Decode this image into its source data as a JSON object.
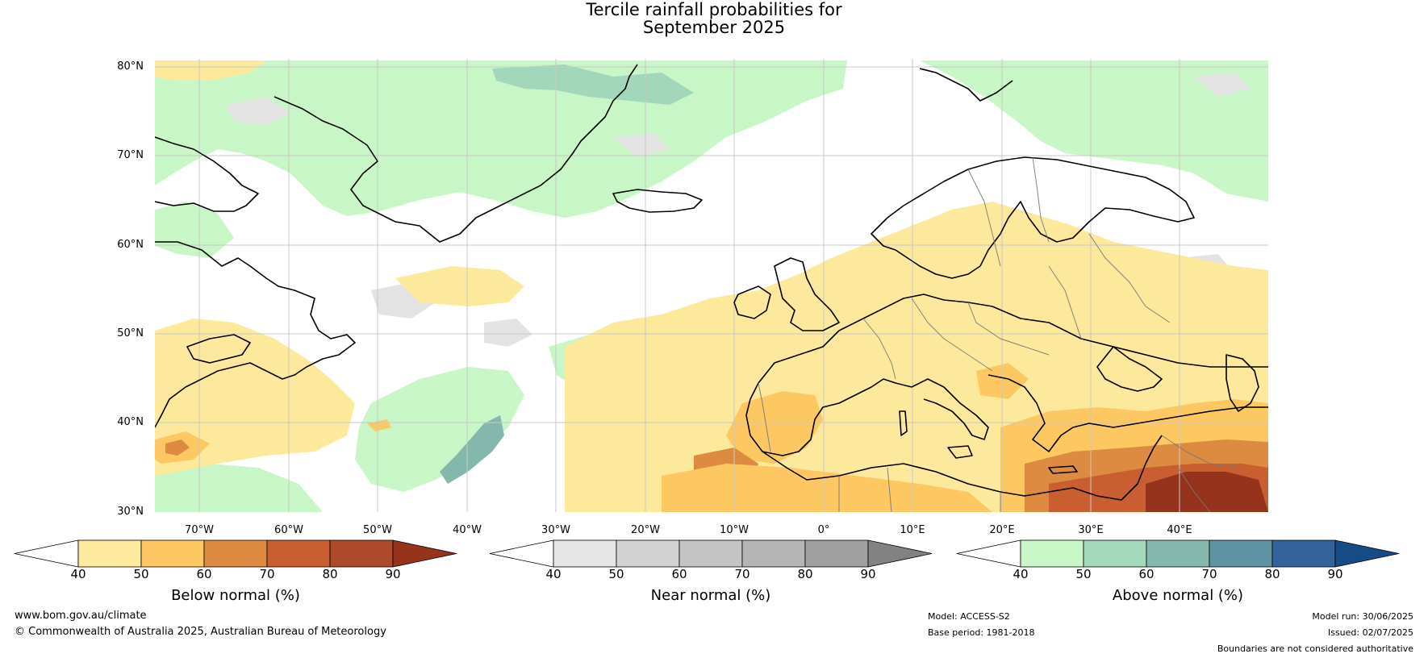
{
  "title": {
    "line1": "Tercile rainfall probabilities for",
    "line2": "September 2025"
  },
  "map": {
    "lat_labels": [
      "80°N",
      "70°N",
      "60°N",
      "50°N",
      "40°N",
      "30°N"
    ],
    "lon_labels": [
      "70°W",
      "60°W",
      "50°W",
      "40°W",
      "30°W",
      "20°W",
      "10°W",
      "0°",
      "10°E",
      "20°E",
      "30°E",
      "40°E"
    ],
    "lat_range": [
      30,
      81
    ],
    "lon_range": [
      -75,
      50
    ],
    "colors": {
      "land_border": "#000000",
      "country_border": "#777777",
      "grid": "#c8c8c8",
      "below_light": "#fde99b",
      "above_light": "#c9f6c6",
      "near_light": "#e3e3e3"
    }
  },
  "colorbars": [
    {
      "title": "Below normal (%)",
      "ticks": [
        "40",
        "50",
        "60",
        "70",
        "80",
        "90"
      ],
      "colors": [
        "#ffffff",
        "#feea9c",
        "#fdc862",
        "#dc8b40",
        "#c95f30",
        "#ad4a2c",
        "#96331d"
      ]
    },
    {
      "title": "Near normal (%)",
      "ticks": [
        "40",
        "50",
        "60",
        "70",
        "80",
        "90"
      ],
      "colors": [
        "#ffffff",
        "#e6e6e6",
        "#d3d3d3",
        "#c4c4c4",
        "#b5b5b5",
        "#a0a0a0",
        "#828282"
      ]
    },
    {
      "title": "Above normal (%)",
      "ticks": [
        "40",
        "50",
        "60",
        "70",
        "80",
        "90"
      ],
      "colors": [
        "#ffffff",
        "#c9f7c8",
        "#a4d9bb",
        "#84b8ad",
        "#5e93a3",
        "#33639a",
        "#164b85"
      ]
    }
  ],
  "footer": {
    "website": "www.bom.gov.au/climate",
    "copyright": "© Commonwealth of Australia 2025, Australian Bureau of Meteorology",
    "model": "Model: ACCESS-S2",
    "base_period": "Base period: 1981-2018",
    "model_run": "Model run: 30/06/2025",
    "issued": "Issued: 02/07/2025",
    "disclaimer": "Boundaries are not considered authoritative"
  }
}
